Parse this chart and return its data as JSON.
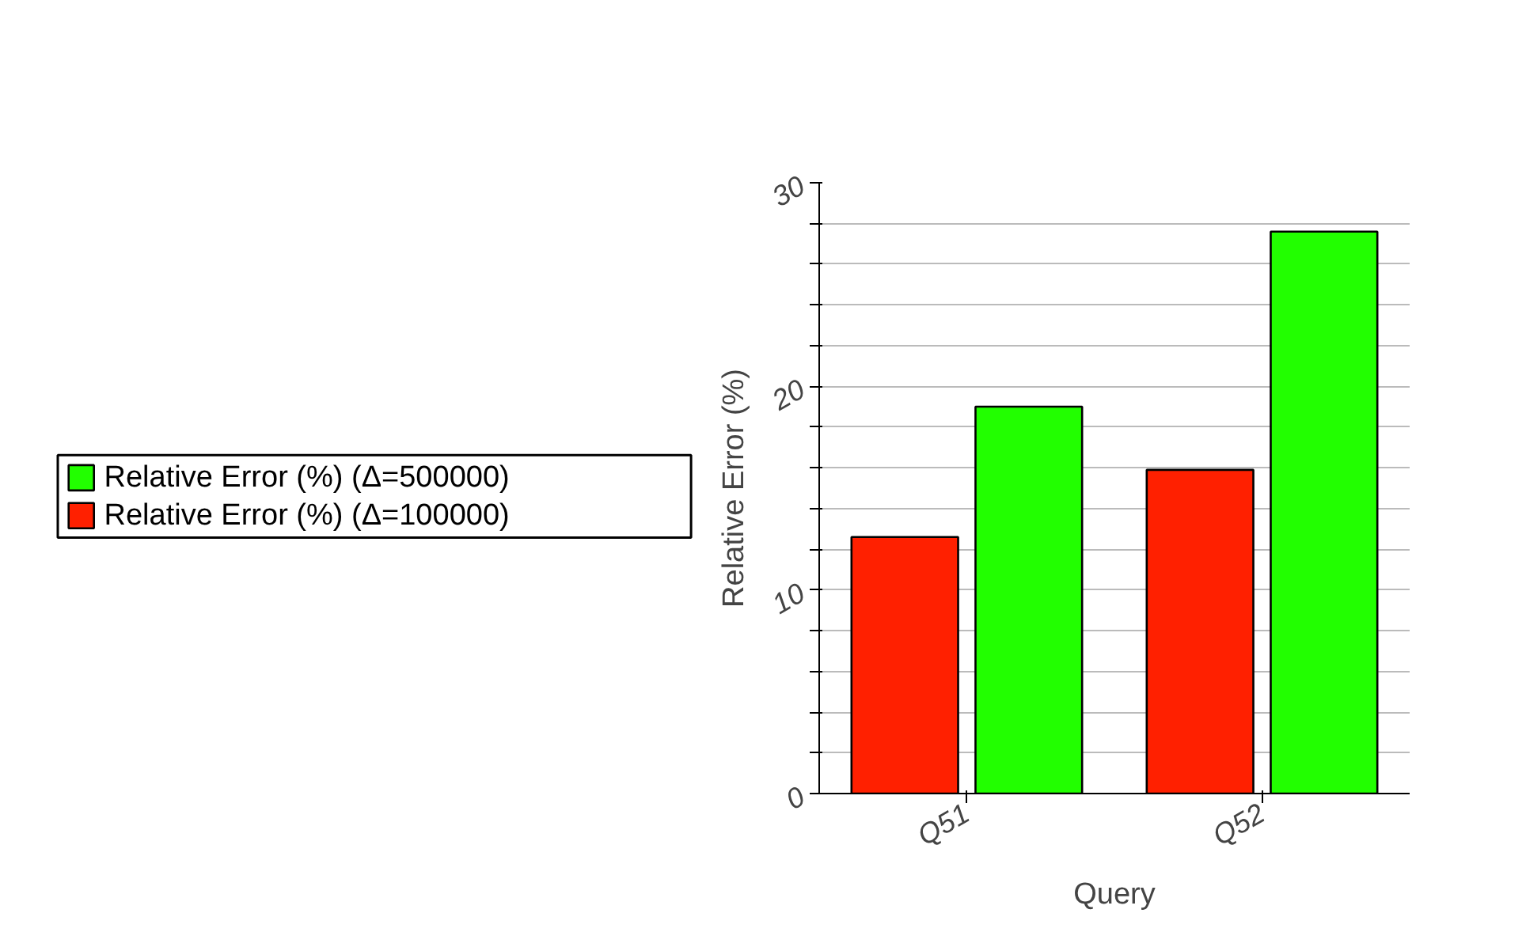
{
  "chart_data": {
    "type": "bar",
    "xlabel": "Query",
    "ylabel": "Relative Error (%)",
    "categories": [
      "Q51",
      "Q52"
    ],
    "series": [
      {
        "name": "Relative Error (%) (Δ=100000)",
        "color": "#ff2000",
        "values": [
          12.6,
          15.9
        ]
      },
      {
        "name": "Relative Error (%) (Δ=500000)",
        "color": "#22ff00",
        "values": [
          19.0,
          27.6
        ]
      }
    ],
    "ylim": [
      0,
      30
    ],
    "yticks": [
      0,
      {
        "value": 2,
        "label": null
      },
      {
        "value": 4,
        "label": null
      },
      {
        "value": 6,
        "label": null
      },
      {
        "value": 8,
        "label": null
      },
      10,
      {
        "value": 12,
        "label": null
      },
      {
        "value": 14,
        "label": null
      },
      {
        "value": 16,
        "label": null
      },
      {
        "value": 18,
        "label": null
      },
      20,
      {
        "value": 22,
        "label": null
      },
      {
        "value": 24,
        "label": null
      },
      {
        "value": 26,
        "label": null
      },
      {
        "value": 28,
        "label": null
      },
      30
    ],
    "grid": "y",
    "legend": "left"
  }
}
